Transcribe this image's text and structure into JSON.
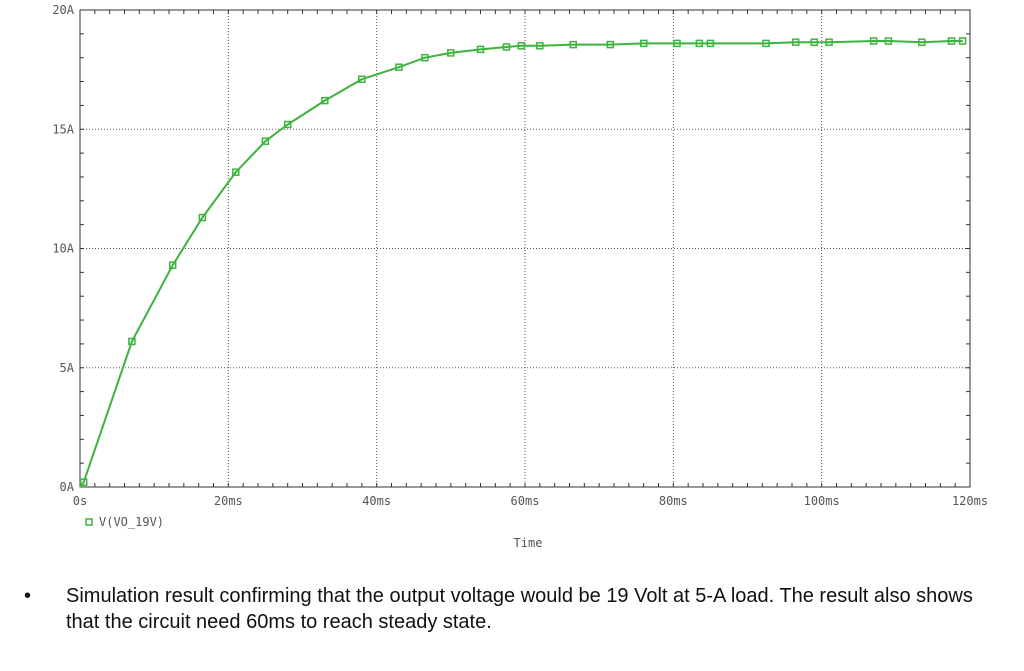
{
  "chart_data": {
    "type": "line",
    "xlabel": "Time",
    "ylabel": "",
    "xlim": [
      0,
      120
    ],
    "ylim": [
      0,
      20
    ],
    "x_ticks": [
      {
        "value": 0,
        "label": "0s"
      },
      {
        "value": 20,
        "label": "20ms"
      },
      {
        "value": 40,
        "label": "40ms"
      },
      {
        "value": 60,
        "label": "60ms"
      },
      {
        "value": 80,
        "label": "80ms"
      },
      {
        "value": 100,
        "label": "100ms"
      },
      {
        "value": 120,
        "label": "120ms"
      }
    ],
    "y_ticks": [
      {
        "value": 0,
        "label": "0A"
      },
      {
        "value": 5,
        "label": "5A"
      },
      {
        "value": 10,
        "label": "10A"
      },
      {
        "value": 15,
        "label": "15A"
      },
      {
        "value": 20,
        "label": "20A"
      }
    ],
    "grid": true,
    "legend": "bottom-left",
    "series": [
      {
        "name": "V(VO_19V)",
        "color": "#3cb33c",
        "marker": "square",
        "x": [
          0.5,
          7,
          12.5,
          16.5,
          21,
          25,
          28,
          33,
          38,
          43,
          46.5,
          50,
          54,
          57.5,
          59.5,
          62,
          66.5,
          71.5,
          76,
          80.5,
          83.5,
          85,
          92.5,
          96.5,
          99,
          101,
          107,
          109,
          113.5,
          117.5,
          119
        ],
        "y": [
          0.2,
          6.1,
          9.3,
          11.3,
          13.2,
          14.5,
          15.2,
          16.2,
          17.1,
          17.6,
          18.0,
          18.2,
          18.35,
          18.45,
          18.5,
          18.5,
          18.55,
          18.55,
          18.6,
          18.6,
          18.6,
          18.6,
          18.6,
          18.65,
          18.65,
          18.65,
          18.7,
          18.7,
          18.65,
          18.7,
          18.7
        ]
      }
    ]
  },
  "caption": {
    "bullet": "•",
    "text": "Simulation result confirming that the output voltage would be 19 Volt at 5-A load. The result also shows that the circuit need 60ms to reach steady state."
  }
}
